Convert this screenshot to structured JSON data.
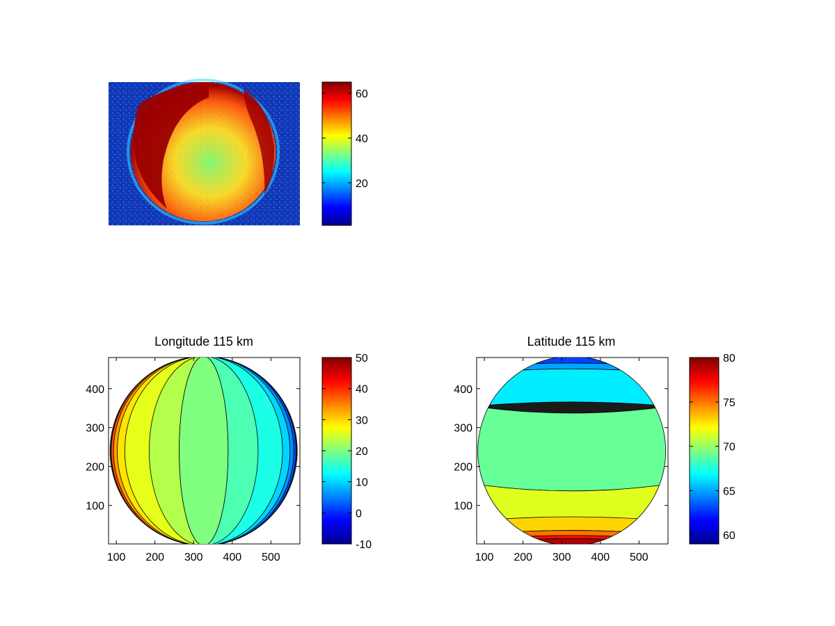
{
  "figure": {
    "background": "#ffffff"
  },
  "chart_data": [
    {
      "type": "heatmap",
      "title": "",
      "xlabel": "",
      "ylabel": "",
      "axes_visible": false,
      "colormap": "jet",
      "description_values": {
        "disk_outer": 62,
        "disk_center": 32,
        "background": 4
      },
      "colorbar": {
        "range": [
          1,
          65
        ],
        "ticks": [
          20,
          40,
          60
        ]
      }
    },
    {
      "type": "heatmap",
      "title": "Longitude 115 km",
      "xlabel": "",
      "ylabel": "",
      "xlim": [
        80,
        575
      ],
      "ylim": [
        1,
        480
      ],
      "xticks": [
        100,
        200,
        300,
        400,
        500
      ],
      "yticks": [
        100,
        200,
        300,
        400
      ],
      "colormap": "jet",
      "contours": true,
      "disk": {
        "cx": 326,
        "cy": 240,
        "r": 243
      },
      "bands": [
        {
          "x_center": 326,
          "value": 20
        },
        {
          "x_center": 245,
          "value": 23
        },
        {
          "x_center": 407,
          "value": 17
        },
        {
          "x_center": 170,
          "value": 26
        },
        {
          "x_center": 482,
          "value": 14
        }
      ],
      "colorbar": {
        "range": [
          -10,
          50
        ],
        "ticks": [
          -10,
          0,
          10,
          20,
          30,
          40,
          50
        ]
      }
    },
    {
      "type": "heatmap",
      "title": "Latitude 115 km",
      "xlabel": "",
      "ylabel": "",
      "xlim": [
        80,
        575
      ],
      "ylim": [
        1,
        480
      ],
      "xticks": [
        100,
        200,
        300,
        400,
        500
      ],
      "yticks": [
        100,
        200,
        300,
        400
      ],
      "colormap": "jet",
      "contours": true,
      "disk": {
        "cx": 326,
        "cy": 240,
        "r": 243
      },
      "bands": [
        {
          "y": 480,
          "value": 63
        },
        {
          "y": 430,
          "value": 66
        },
        {
          "y": 260,
          "value": 69
        },
        {
          "y": 110,
          "value": 71
        },
        {
          "y": 40,
          "value": 73
        },
        {
          "y": 5,
          "value": 77
        }
      ],
      "colorbar": {
        "range": [
          59,
          80
        ],
        "ticks": [
          60,
          65,
          70,
          75,
          80
        ]
      }
    }
  ]
}
